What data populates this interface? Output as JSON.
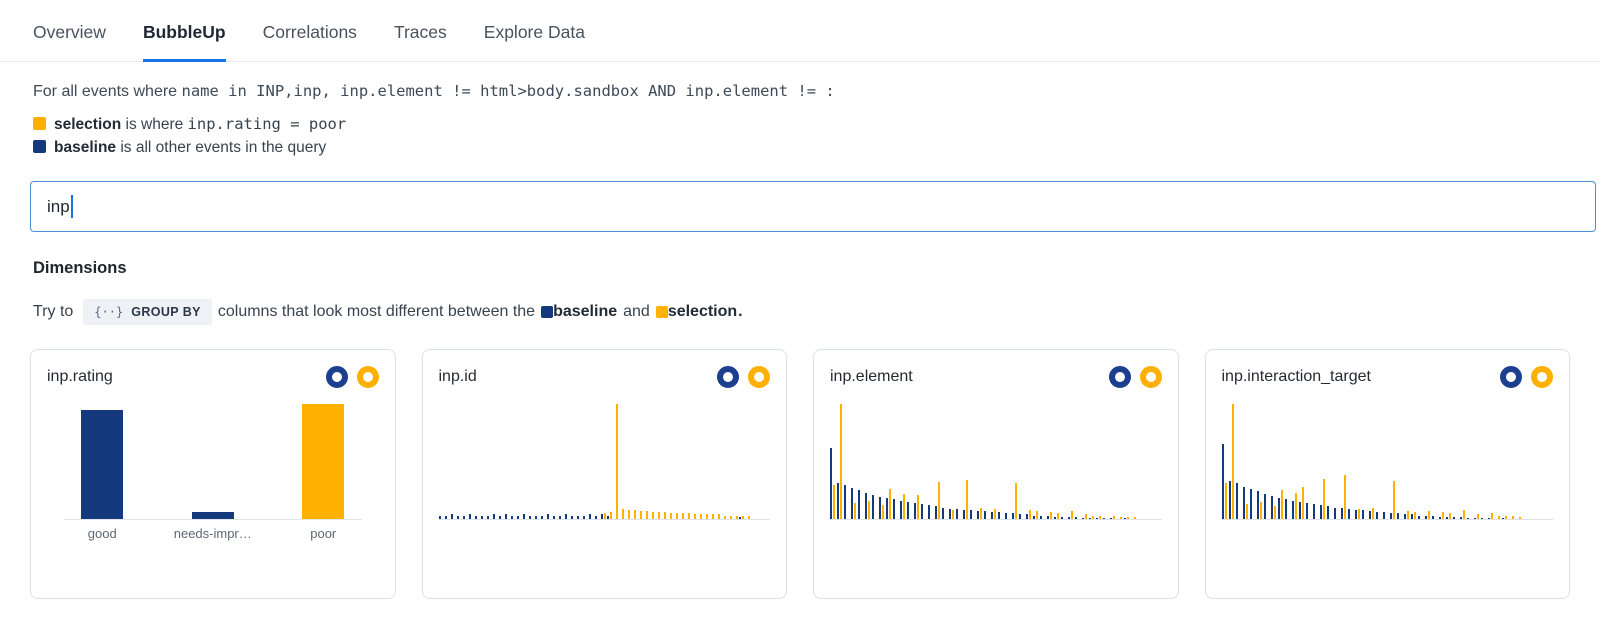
{
  "colors": {
    "baseline": "#143a7d",
    "selection": "#ffb000",
    "accent_blue": "#1a73e8"
  },
  "tabs": {
    "items": [
      {
        "label": "Overview",
        "active": false
      },
      {
        "label": "BubbleUp",
        "active": true
      },
      {
        "label": "Correlations",
        "active": false
      },
      {
        "label": "Traces",
        "active": false
      },
      {
        "label": "Explore Data",
        "active": false
      }
    ]
  },
  "query": {
    "prefix": "For all events where ",
    "expression": "name in INP,inp, inp.element != html>body.sandbox AND inp.element != :"
  },
  "legend": {
    "selection_name": "selection",
    "selection_mid": " is where ",
    "selection_expr": "inp.rating = poor",
    "baseline_name": "baseline",
    "baseline_rest": " is all other events in the query"
  },
  "search": {
    "value": "inp"
  },
  "dimensions": {
    "heading": "Dimensions",
    "try_prefix": "Try to",
    "group_by_icon": "{··}",
    "group_by_label": "GROUP BY",
    "try_middle": "columns that look most different between the",
    "baseline_label": "baseline",
    "and_label": "and",
    "selection_label": "selection",
    "period": "."
  },
  "cards": [
    {
      "title": "inp.rating",
      "chart_data": {
        "type": "bar",
        "layout": "wide",
        "title": "inp.rating",
        "categories": [
          "good",
          "needs-impr…",
          "poor"
        ],
        "ylim": [
          0,
          100
        ],
        "grid": false,
        "series": [
          {
            "name": "baseline",
            "color": "baseline",
            "values": [
              95,
              6,
              0
            ]
          },
          {
            "name": "selection",
            "color": "selection",
            "values": [
              0,
              0,
              100
            ]
          }
        ]
      }
    },
    {
      "title": "inp.id",
      "chart_data": {
        "type": "bar",
        "layout": "dense",
        "title": "inp.id",
        "gap": 1,
        "ylim": [
          0,
          100
        ],
        "grid": false,
        "series": [
          {
            "name": "baseline",
            "color": "baseline",
            "values": [
              3,
              3,
              4,
              3,
              3,
              4,
              3,
              3,
              3,
              4,
              3,
              4,
              3,
              3,
              4,
              3,
              3,
              3,
              4,
              3,
              3,
              4,
              3,
              3,
              3,
              4,
              3,
              4,
              3,
              0,
              0,
              0,
              0,
              0,
              0,
              0,
              0,
              0,
              0,
              0,
              0,
              0,
              0,
              0,
              0,
              0,
              0,
              0,
              0,
              0,
              2,
              0
            ]
          },
          {
            "name": "selection",
            "color": "selection",
            "values": [
              0,
              0,
              0,
              0,
              0,
              0,
              0,
              0,
              0,
              0,
              0,
              0,
              0,
              0,
              0,
              0,
              0,
              0,
              0,
              0,
              0,
              0,
              0,
              0,
              0,
              0,
              0,
              5,
              6,
              100,
              9,
              8,
              8,
              7,
              7,
              6,
              6,
              6,
              5,
              5,
              5,
              5,
              4,
              4,
              4,
              4,
              4,
              3,
              3,
              3,
              3,
              3
            ]
          }
        ]
      }
    },
    {
      "title": "inp.element",
      "chart_data": {
        "type": "bar",
        "layout": "dense",
        "title": "inp.element",
        "gap": 2,
        "ylim": [
          0,
          100
        ],
        "grid": false,
        "series": [
          {
            "name": "baseline",
            "color": "baseline",
            "values": [
              62,
              31,
              30,
              27,
              25,
              23,
              21,
              19,
              18,
              17,
              16,
              15,
              14,
              13,
              12,
              11,
              10,
              9,
              9,
              8,
              8,
              7,
              7,
              6,
              6,
              5,
              5,
              4,
              4,
              3,
              3,
              3,
              2,
              2,
              2,
              2,
              1,
              1,
              1,
              1,
              1,
              0,
              1,
              0
            ]
          },
          {
            "name": "selection",
            "color": "selection",
            "values": [
              30,
              100,
              0,
              14,
              0,
              16,
              0,
              12,
              26,
              0,
              22,
              0,
              21,
              0,
              0,
              32,
              0,
              8,
              0,
              34,
              0,
              10,
              0,
              9,
              0,
              0,
              31,
              0,
              8,
              7,
              0,
              6,
              5,
              0,
              7,
              0,
              4,
              3,
              3,
              0,
              3,
              2,
              2,
              2
            ]
          }
        ]
      }
    },
    {
      "title": "inp.interaction_target",
      "chart_data": {
        "type": "bar",
        "layout": "dense",
        "title": "inp.interaction_target",
        "gap": 2,
        "ylim": [
          0,
          100
        ],
        "grid": false,
        "series": [
          {
            "name": "baseline",
            "color": "baseline",
            "values": [
              65,
              33,
              31,
              28,
              26,
              24,
              22,
              20,
              18,
              17,
              16,
              15,
              14,
              13,
              12,
              11,
              10,
              10,
              9,
              8,
              8,
              7,
              6,
              6,
              5,
              5,
              4,
              4,
              3,
              3,
              3,
              2,
              2,
              2,
              2,
              1,
              1,
              1,
              1,
              0,
              1,
              0,
              0
            ]
          },
          {
            "name": "selection",
            "color": "selection",
            "values": [
              31,
              100,
              0,
              13,
              0,
              15,
              0,
              11,
              25,
              0,
              23,
              28,
              0,
              0,
              35,
              0,
              0,
              38,
              0,
              9,
              0,
              10,
              0,
              0,
              33,
              0,
              7,
              6,
              0,
              7,
              0,
              6,
              5,
              0,
              8,
              0,
              4,
              0,
              5,
              3,
              3,
              3,
              2
            ]
          }
        ]
      }
    }
  ]
}
